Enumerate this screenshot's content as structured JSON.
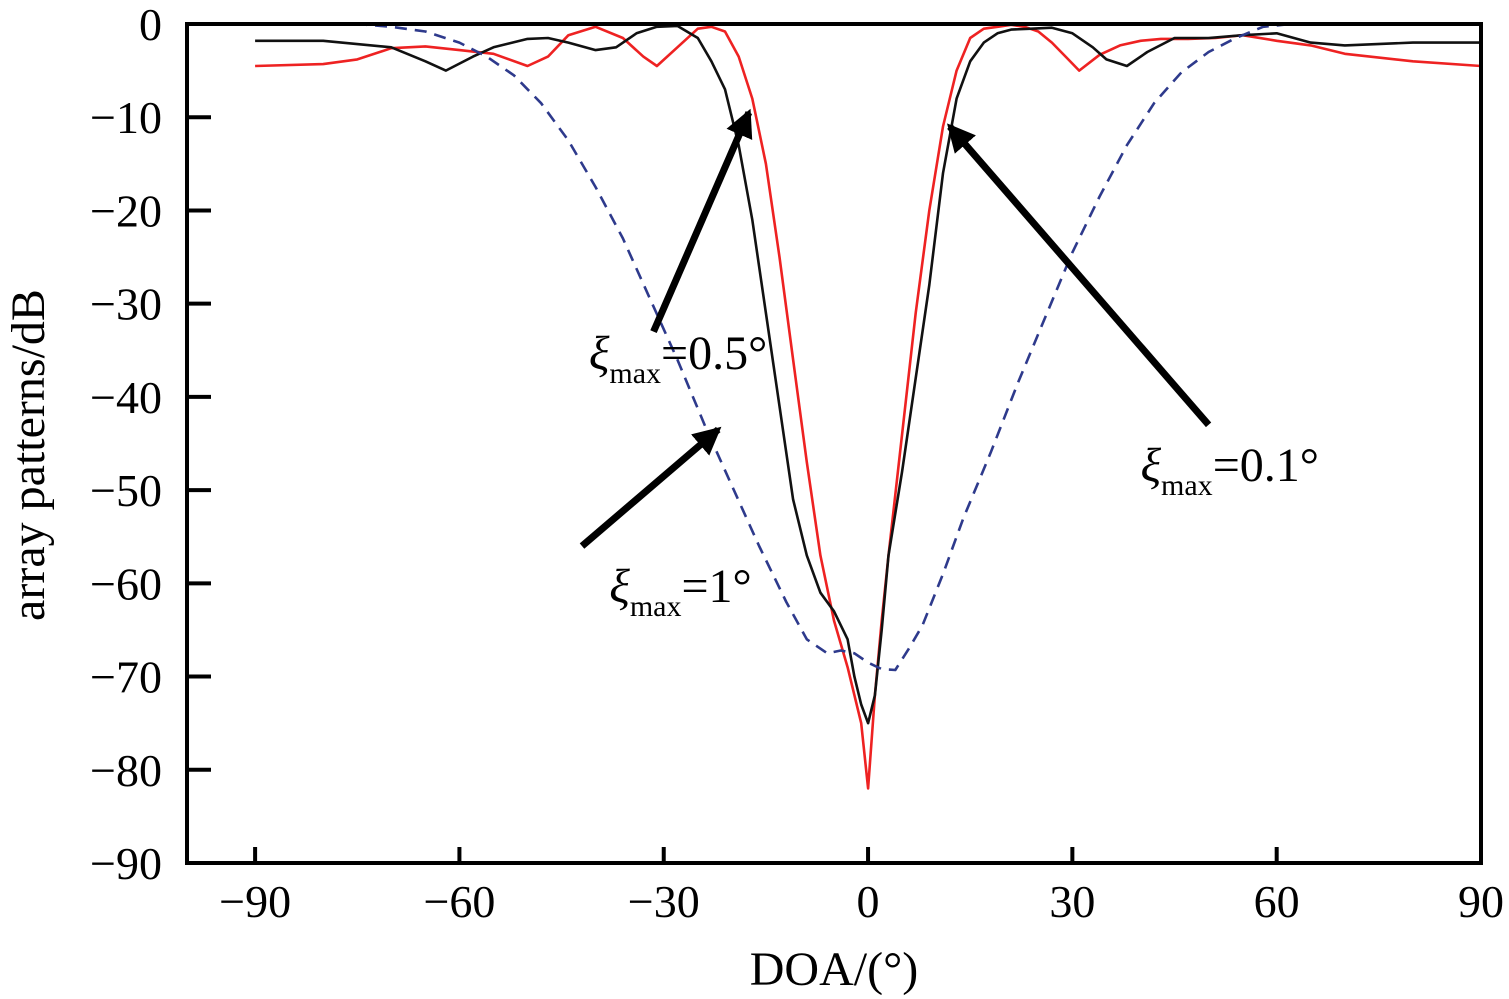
{
  "chart_data": {
    "type": "line",
    "title": "",
    "xlabel": "DOA/(°)",
    "ylabel": "array patterns/dB",
    "xlim": [
      -100,
      90
    ],
    "ylim": [
      -90,
      0
    ],
    "xticks": [
      -90,
      -60,
      -30,
      0,
      30,
      60,
      90
    ],
    "xtick_labels": [
      "−90",
      "−60",
      "−30",
      "0",
      "30",
      "60",
      "90"
    ],
    "yticks": [
      0,
      -10,
      -20,
      -30,
      -40,
      -50,
      -60,
      -70,
      -80,
      -90
    ],
    "ytick_labels": [
      "0",
      "−10",
      "−20",
      "−30",
      "−40",
      "−50",
      "−60",
      "−70",
      "−80",
      "−90"
    ],
    "grid": false,
    "legend": "none",
    "series": [
      {
        "color": "#ee2222",
        "style": "solid",
        "x": [
          -90,
          -80,
          -75,
          -70,
          -65,
          -60,
          -55,
          -50,
          -47,
          -44,
          -40,
          -36,
          -33,
          -31,
          -28,
          -25,
          -23,
          -21,
          -19,
          -17,
          -15,
          -13,
          -11,
          -9,
          -7,
          -5,
          -3,
          -2,
          -1,
          0,
          1,
          2,
          3,
          5,
          7,
          9,
          11,
          13,
          15,
          17,
          19,
          21,
          23,
          25,
          27,
          29,
          31,
          34,
          37,
          40,
          43,
          47,
          51,
          55,
          60,
          65,
          70,
          80,
          90
        ],
        "y": [
          -4.5,
          -4.3,
          -3.8,
          -2.6,
          -2.4,
          -2.8,
          -3.2,
          -4.5,
          -3.5,
          -1.2,
          -0.3,
          -1.5,
          -3.5,
          -4.5,
          -2.5,
          -0.5,
          -0.3,
          -0.8,
          -3.5,
          -8,
          -15,
          -25,
          -36,
          -47,
          -57,
          -64,
          -69,
          -72,
          -75,
          -82,
          -72,
          -64,
          -57,
          -44,
          -31,
          -20,
          -11,
          -5,
          -1.5,
          -0.5,
          -0.3,
          -0.1,
          -0.3,
          -0.8,
          -2,
          -3.5,
          -5,
          -3.3,
          -2.3,
          -1.8,
          -1.6,
          -1.6,
          -1.5,
          -1.2,
          -1.8,
          -2.3,
          -3.2,
          -4,
          -4.5
        ]
      },
      {
        "color": "#111111",
        "style": "solid",
        "x": [
          -90,
          -80,
          -70,
          -65,
          -62,
          -58,
          -55,
          -50,
          -47,
          -44,
          -40,
          -37,
          -34,
          -31,
          -28,
          -25,
          -23,
          -21,
          -19,
          -17,
          -15,
          -13,
          -11,
          -9,
          -7,
          -5,
          -3,
          -2,
          -1,
          0,
          1,
          2,
          3,
          5,
          7,
          9,
          11,
          13,
          15,
          17,
          19,
          21,
          24,
          27,
          30,
          33,
          35,
          38,
          41,
          45,
          50,
          55,
          60,
          65,
          70,
          80,
          90
        ],
        "y": [
          -1.8,
          -1.8,
          -2.5,
          -4,
          -5,
          -3.5,
          -2.5,
          -1.6,
          -1.5,
          -2,
          -2.8,
          -2.5,
          -1,
          -0.3,
          -0.2,
          -1.5,
          -4,
          -7,
          -13,
          -21,
          -31,
          -41,
          -51,
          -57,
          -61,
          -63,
          -66,
          -70,
          -73,
          -75,
          -72,
          -65,
          -57,
          -48,
          -38,
          -28,
          -16,
          -8,
          -4,
          -2,
          -1,
          -0.6,
          -0.5,
          -0.4,
          -1,
          -2.5,
          -3.8,
          -4.5,
          -3,
          -1.5,
          -1.5,
          -1.2,
          -1,
          -2,
          -2.3,
          -2,
          -2
        ]
      },
      {
        "color": "#2e3a8c",
        "style": "dashed",
        "x": [
          -90,
          -80,
          -75,
          -70,
          -65,
          -60,
          -56,
          -52,
          -48,
          -44,
          -40,
          -36,
          -32,
          -28,
          -24,
          -20,
          -16,
          -12,
          -9,
          -6,
          -4,
          -2,
          0,
          2,
          4,
          6,
          8,
          11,
          14,
          18,
          22,
          26,
          30,
          34,
          38,
          42,
          46,
          50,
          54,
          58,
          62,
          66,
          70,
          75,
          80,
          90
        ],
        "y": [
          0,
          0,
          0,
          -0.3,
          -0.8,
          -2,
          -3.5,
          -5.5,
          -8.5,
          -12.5,
          -17.5,
          -23,
          -29.5,
          -36,
          -43,
          -49.5,
          -56,
          -62,
          -66,
          -67.5,
          -67.2,
          -67.5,
          -68.5,
          -69.2,
          -69.3,
          -67,
          -64.5,
          -59,
          -53,
          -46,
          -38.5,
          -31.5,
          -24.5,
          -18.5,
          -13,
          -8.5,
          -5.2,
          -3,
          -1.5,
          -0.3,
          0,
          0,
          0,
          0,
          0,
          0
        ]
      }
    ],
    "annotations": [
      {
        "base": "ξ",
        "subscript": "max",
        "text": "=0.5°",
        "x": -41,
        "y": -37,
        "arrow_from": [
          -31.5,
          -33
        ],
        "arrow_to": [
          -17.5,
          -9.5
        ]
      },
      {
        "base": "ξ",
        "subscript": "max",
        "text": "=0.1°",
        "x": 40,
        "y": -49,
        "arrow_from": [
          50,
          -43
        ],
        "arrow_to": [
          12,
          -11
        ]
      },
      {
        "base": "ξ",
        "subscript": "max",
        "text": "=1°",
        "x": -38,
        "y": -62,
        "arrow_from": [
          -42,
          -56
        ],
        "arrow_to": [
          -22,
          -43.5
        ]
      }
    ]
  }
}
